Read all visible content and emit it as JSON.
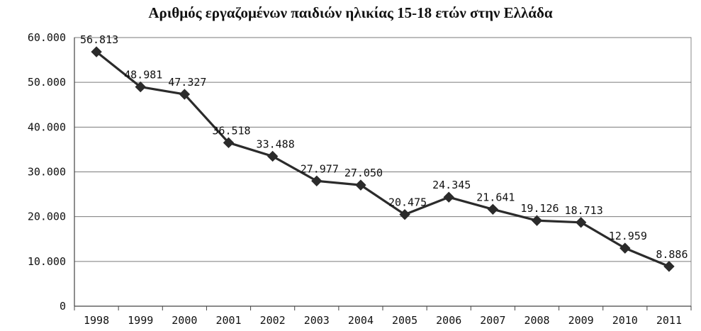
{
  "chart_data": {
    "type": "line",
    "title": "Αριθμός εργαζομένων παιδιών ηλικίας 15-18 ετών στην Ελλάδα",
    "categories": [
      "1998",
      "1999",
      "2000",
      "2001",
      "2002",
      "2003",
      "2004",
      "2005",
      "2006",
      "2007",
      "2008",
      "2009",
      "2010",
      "2011"
    ],
    "values": [
      56813,
      48981,
      47327,
      36518,
      33488,
      27977,
      27050,
      20475,
      24345,
      21641,
      19126,
      18713,
      12959,
      8886
    ],
    "data_labels": [
      "56.813",
      "48.981",
      "47.327",
      "36.518",
      "33.488",
      "27.977",
      "27.050",
      "20.475",
      "24.345",
      "21.641",
      "19.126",
      "18.713",
      "12.959",
      "8.886"
    ],
    "ylim": [
      0,
      60000
    ],
    "y_ticks": [
      0,
      10000,
      20000,
      30000,
      40000,
      50000,
      60000
    ],
    "y_tick_labels": [
      "0",
      "10.000",
      "20.000",
      "30.000",
      "40.000",
      "50.000",
      "60.000"
    ],
    "grid": true,
    "legend": "none",
    "line_color": "#2b2b2b",
    "marker": "diamond"
  }
}
